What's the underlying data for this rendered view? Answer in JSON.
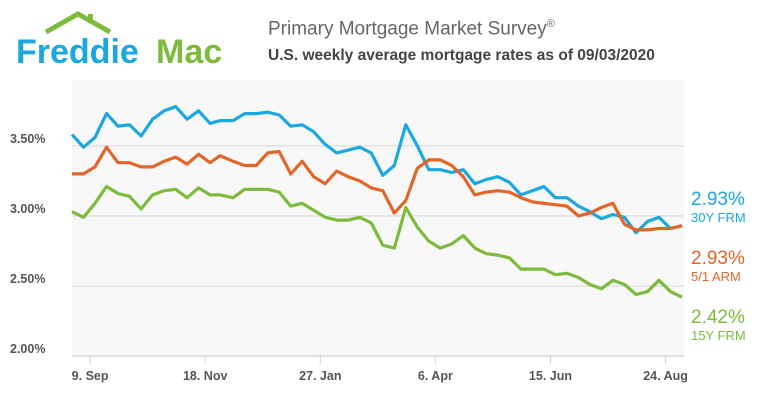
{
  "brand": {
    "logo_text_1": "Freddie",
    "logo_text_2": "Mac"
  },
  "header": {
    "title": "Primary Mortgage Market Survey",
    "title_mark": "®",
    "subtitle": "U.S. weekly average mortgage rates as of 09/03/2020"
  },
  "colors": {
    "frm30": "#1ba8e0",
    "arm51": "#e0662a",
    "frm15": "#7dbb3c",
    "plot_bg": "#f8f8f8"
  },
  "chart_data": {
    "type": "line",
    "title": "Primary Mortgage Market Survey",
    "subtitle": "U.S. weekly average mortgage rates as of 09/03/2020",
    "x": [
      "2019-08-29",
      "2019-09-05",
      "2019-09-12",
      "2019-09-19",
      "2019-09-26",
      "2019-10-03",
      "2019-10-10",
      "2019-10-17",
      "2019-10-24",
      "2019-10-31",
      "2019-11-07",
      "2019-11-14",
      "2019-11-21",
      "2019-11-27",
      "2019-12-05",
      "2019-12-12",
      "2019-12-19",
      "2019-12-26",
      "2020-01-02",
      "2020-01-09",
      "2020-01-16",
      "2020-01-23",
      "2020-01-30",
      "2020-02-06",
      "2020-02-13",
      "2020-02-20",
      "2020-02-27",
      "2020-03-05",
      "2020-03-12",
      "2020-03-19",
      "2020-03-26",
      "2020-04-02",
      "2020-04-09",
      "2020-04-16",
      "2020-04-23",
      "2020-04-30",
      "2020-05-07",
      "2020-05-14",
      "2020-05-21",
      "2020-05-28",
      "2020-06-04",
      "2020-06-11",
      "2020-06-18",
      "2020-06-25",
      "2020-07-02",
      "2020-07-09",
      "2020-07-16",
      "2020-07-23",
      "2020-07-30",
      "2020-08-06",
      "2020-08-13",
      "2020-08-20",
      "2020-08-27",
      "2020-09-03"
    ],
    "x_ticks": [
      "9. Sep",
      "18. Nov",
      "27. Jan",
      "6. Apr",
      "15. Jun",
      "24. Aug"
    ],
    "x_tick_dates": [
      "2019-09-09",
      "2019-11-18",
      "2020-01-27",
      "2020-04-06",
      "2020-06-15",
      "2020-08-24"
    ],
    "y_ticks": [
      "2.00%",
      "2.50%",
      "3.00%",
      "3.50%"
    ],
    "y_tick_values": [
      2.0,
      2.5,
      3.0,
      3.5
    ],
    "ylim": [
      2.0,
      3.97
    ],
    "grid": true,
    "legend": "right",
    "series": [
      {
        "key": "frm30",
        "name": "30Y FRM",
        "last_label": "2.93%",
        "values": [
          3.58,
          3.49,
          3.56,
          3.73,
          3.64,
          3.65,
          3.57,
          3.69,
          3.75,
          3.78,
          3.69,
          3.75,
          3.66,
          3.68,
          3.68,
          3.73,
          3.73,
          3.74,
          3.72,
          3.64,
          3.65,
          3.6,
          3.51,
          3.45,
          3.47,
          3.49,
          3.45,
          3.29,
          3.36,
          3.65,
          3.5,
          3.33,
          3.33,
          3.31,
          3.33,
          3.23,
          3.26,
          3.28,
          3.24,
          3.15,
          3.18,
          3.21,
          3.13,
          3.13,
          3.07,
          3.03,
          2.98,
          3.01,
          2.99,
          2.88,
          2.96,
          2.99,
          2.91,
          2.93
        ]
      },
      {
        "key": "arm51",
        "name": "5/1 ARM",
        "last_label": "2.93%",
        "values": [
          3.3,
          3.3,
          3.35,
          3.49,
          3.38,
          3.38,
          3.35,
          3.35,
          3.39,
          3.42,
          3.37,
          3.44,
          3.38,
          3.43,
          3.39,
          3.36,
          3.36,
          3.45,
          3.46,
          3.3,
          3.39,
          3.28,
          3.23,
          3.32,
          3.28,
          3.25,
          3.2,
          3.18,
          3.02,
          3.11,
          3.34,
          3.4,
          3.4,
          3.36,
          3.28,
          3.15,
          3.17,
          3.18,
          3.17,
          3.13,
          3.1,
          3.09,
          3.08,
          3.07,
          3.0,
          3.02,
          3.06,
          3.09,
          2.94,
          2.9,
          2.9,
          2.91,
          2.91,
          2.93
        ]
      },
      {
        "key": "frm15",
        "name": "15Y FRM",
        "last_label": "2.42%",
        "values": [
          3.03,
          2.99,
          3.09,
          3.21,
          3.16,
          3.14,
          3.05,
          3.15,
          3.18,
          3.19,
          3.13,
          3.2,
          3.15,
          3.15,
          3.13,
          3.19,
          3.19,
          3.19,
          3.17,
          3.07,
          3.09,
          3.04,
          2.99,
          2.97,
          2.97,
          2.99,
          2.95,
          2.79,
          2.77,
          3.06,
          2.92,
          2.82,
          2.77,
          2.8,
          2.86,
          2.77,
          2.73,
          2.72,
          2.7,
          2.62,
          2.62,
          2.62,
          2.58,
          2.59,
          2.56,
          2.51,
          2.48,
          2.54,
          2.51,
          2.44,
          2.46,
          2.54,
          2.46,
          2.42
        ]
      }
    ]
  }
}
